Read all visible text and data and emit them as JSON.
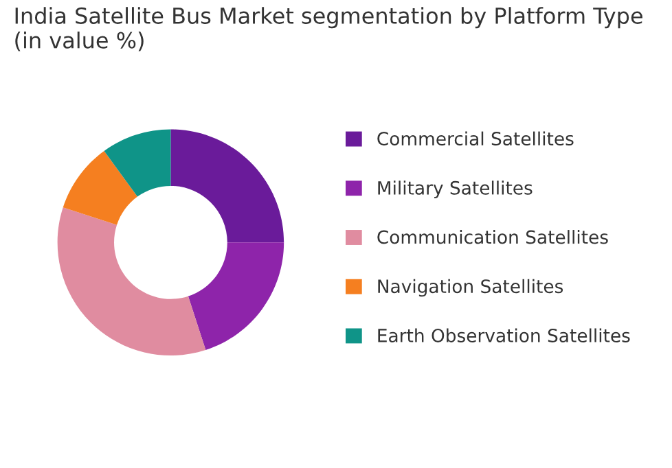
{
  "chart_data": {
    "type": "donut",
    "title": "India Satellite Bus Market segmentation by Platform Type\n(in value %)",
    "categories": [
      "Commercial Satellites",
      "Military Satellites",
      "Communication Satellites",
      "Navigation Satellites",
      "Earth Observation Satellites"
    ],
    "values": [
      25,
      20,
      35,
      10,
      10
    ],
    "colors": [
      "#6a1b9a",
      "#8e24aa",
      "#e08ca0",
      "#f57f20",
      "#0f9488"
    ],
    "legend": "right"
  }
}
